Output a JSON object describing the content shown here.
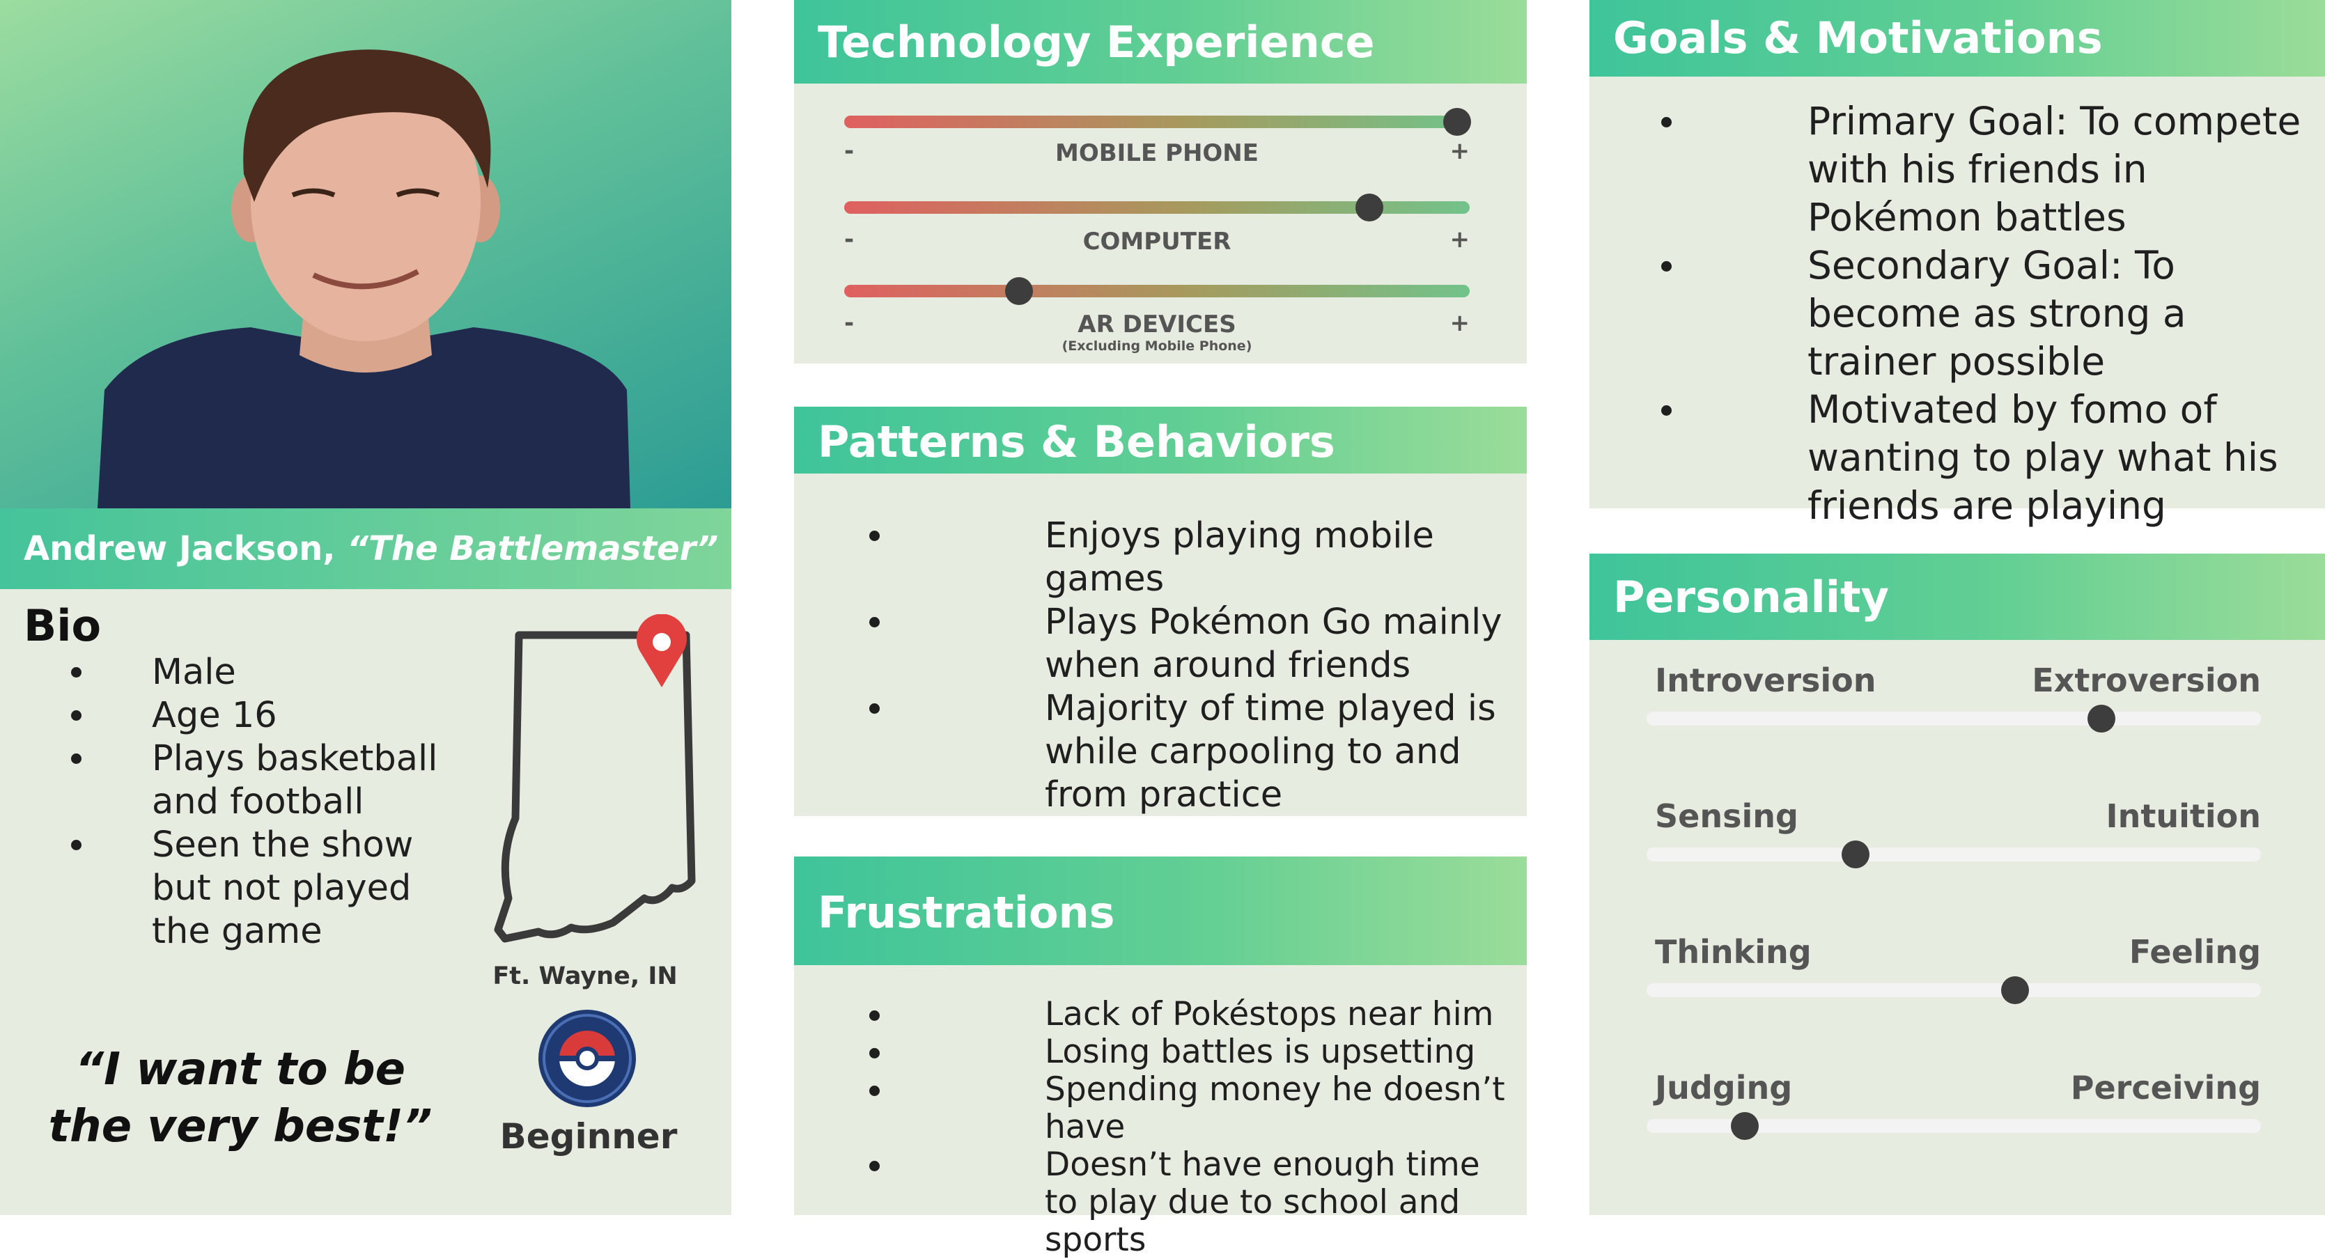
{
  "profile": {
    "name": "Andrew Jackson,",
    "nickname": "“The Battlemaster”",
    "bio_title": "Bio",
    "bio": [
      "Male",
      "Age 16",
      "Plays basketball and football",
      "Seen the show but not played the game"
    ],
    "quote": "“I want to be the very best!”",
    "location": "Ft. Wayne, IN",
    "level": "Beginner"
  },
  "technology": {
    "title": "Technology Experience",
    "sliders": [
      {
        "label": "MOBILE PHONE",
        "sublabel": "",
        "minus": "-",
        "plus": "+",
        "value": 0.98
      },
      {
        "label": "COMPUTER",
        "sublabel": "",
        "minus": "-",
        "plus": "+",
        "value": 0.84
      },
      {
        "label": "AR DEVICES",
        "sublabel": "(Excluding Mobile Phone)",
        "minus": "-",
        "plus": "+",
        "value": 0.28
      }
    ]
  },
  "patterns": {
    "title": "Patterns & Behaviors",
    "items": [
      "Enjoys playing mobile games",
      "Plays Pokémon Go mainly when around friends",
      "Majority of time played is while carpooling to and from practice"
    ]
  },
  "frustrations": {
    "title": "Frustrations",
    "items": [
      "Lack of Pokéstops near him",
      "Losing battles is upsetting",
      "Spending money he doesn’t have",
      "Doesn’t have enough time to play due to school and sports"
    ]
  },
  "goals": {
    "title": "Goals & Motivations",
    "items": [
      "Primary Goal: To compete with his friends in Pokémon battles",
      "Secondary Goal: To become as strong a trainer possible",
      "Motivated by fomo of wanting to play what his friends are playing"
    ]
  },
  "personality": {
    "title": "Personality",
    "scales": [
      {
        "left": "Introversion",
        "right": "Extroversion",
        "value": 0.74
      },
      {
        "left": "Sensing",
        "right": "Intuition",
        "value": 0.34
      },
      {
        "left": "Thinking",
        "right": "Feeling",
        "value": 0.6
      },
      {
        "left": "Judging",
        "right": "Perceiving",
        "value": 0.16
      }
    ]
  },
  "colors": {
    "panel_bg": "#e6ede0",
    "header_start": "#3fc49a",
    "header_end": "#9bdc99",
    "slider_dot": "#3d3d3d",
    "map_pin": "#e2403f"
  },
  "icons": {
    "map": "indiana-state-outline-icon",
    "pin": "location-pin-icon",
    "badge": "pokeball-badge-icon"
  }
}
